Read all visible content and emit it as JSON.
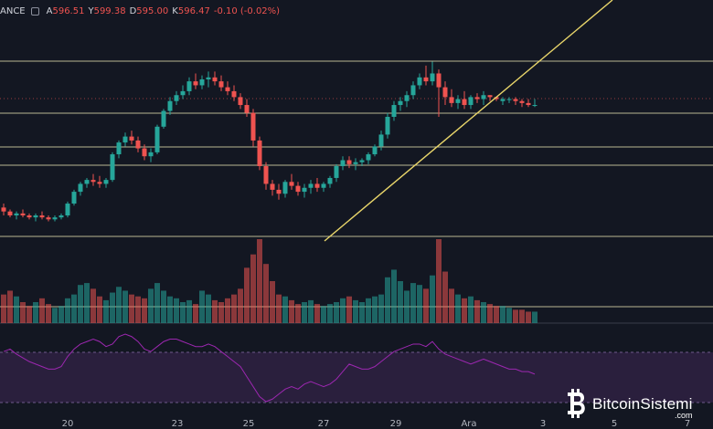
{
  "header": {
    "exchange": "ANCE",
    "open_label": "A",
    "open": "596.51",
    "high_label": "Y",
    "high": "599.38",
    "low_label": "D",
    "low": "595.00",
    "close_label": "K",
    "close": "596.47",
    "change": "-0.10 (-0.02%)",
    "settings_icon": "gear-icon"
  },
  "watermark": {
    "text": "BitcoinSistemi",
    "sub": ".com",
    "logo_icon": "bitcoin-logo-icon"
  },
  "colors": {
    "background": "#131722",
    "up": "#26a69a",
    "down": "#ef5350",
    "horizontal_line": "#d8d3a6",
    "trend_line": "#e8d56a",
    "rsi_line": "#9c27b0",
    "rsi_band": "#2a1f3d"
  },
  "chart_data": {
    "type": "candlestick",
    "x_tick_labels": [
      "20",
      "23",
      "25",
      "27",
      "29",
      "Ara",
      "3",
      "5",
      "7"
    ],
    "price_range": [
      515,
      640
    ],
    "candles": [
      [
        544,
        546,
        540,
        542
      ],
      [
        542,
        543,
        539,
        540
      ],
      [
        540,
        542,
        538,
        541
      ],
      [
        541,
        543,
        539,
        540
      ],
      [
        540,
        541,
        538,
        539
      ],
      [
        539,
        541,
        537,
        540
      ],
      [
        540,
        542,
        538,
        539
      ],
      [
        539,
        540,
        537,
        538
      ],
      [
        538,
        540,
        537,
        539
      ],
      [
        539,
        541,
        538,
        540
      ],
      [
        540,
        547,
        539,
        546
      ],
      [
        546,
        553,
        545,
        552
      ],
      [
        552,
        557,
        550,
        556
      ],
      [
        556,
        559,
        554,
        558
      ],
      [
        558,
        561,
        555,
        557
      ],
      [
        557,
        560,
        554,
        556
      ],
      [
        556,
        559,
        554,
        558
      ],
      [
        558,
        572,
        557,
        571
      ],
      [
        571,
        578,
        569,
        577
      ],
      [
        577,
        582,
        575,
        580
      ],
      [
        580,
        583,
        576,
        578
      ],
      [
        578,
        580,
        572,
        574
      ],
      [
        574,
        576,
        568,
        570
      ],
      [
        570,
        574,
        567,
        572
      ],
      [
        572,
        586,
        571,
        585
      ],
      [
        585,
        594,
        584,
        593
      ],
      [
        593,
        600,
        591,
        598
      ],
      [
        598,
        603,
        596,
        601
      ],
      [
        601,
        606,
        599,
        603
      ],
      [
        603,
        610,
        601,
        608
      ],
      [
        608,
        612,
        604,
        606
      ],
      [
        606,
        611,
        604,
        609
      ],
      [
        609,
        613,
        605,
        610
      ],
      [
        610,
        613,
        606,
        608
      ],
      [
        608,
        611,
        603,
        605
      ],
      [
        605,
        608,
        601,
        603
      ],
      [
        603,
        606,
        598,
        600
      ],
      [
        600,
        602,
        594,
        596
      ],
      [
        596,
        599,
        590,
        592
      ],
      [
        592,
        594,
        575,
        578
      ],
      [
        578,
        580,
        563,
        565
      ],
      [
        565,
        567,
        553,
        556
      ],
      [
        556,
        558,
        550,
        553
      ],
      [
        553,
        556,
        548,
        551
      ],
      [
        551,
        558,
        549,
        557
      ],
      [
        557,
        561,
        553,
        555
      ],
      [
        555,
        557,
        550,
        552
      ],
      [
        552,
        556,
        549,
        554
      ],
      [
        554,
        558,
        551,
        556
      ],
      [
        556,
        559,
        552,
        554
      ],
      [
        554,
        557,
        552,
        556
      ],
      [
        556,
        560,
        554,
        559
      ],
      [
        559,
        566,
        557,
        565
      ],
      [
        565,
        570,
        563,
        568
      ],
      [
        568,
        570,
        564,
        566
      ],
      [
        566,
        569,
        563,
        567
      ],
      [
        567,
        569,
        565,
        568
      ],
      [
        568,
        572,
        566,
        571
      ],
      [
        571,
        576,
        570,
        575
      ],
      [
        575,
        583,
        573,
        581
      ],
      [
        581,
        592,
        579,
        590
      ],
      [
        590,
        598,
        588,
        596
      ],
      [
        596,
        600,
        593,
        598
      ],
      [
        598,
        603,
        595,
        601
      ],
      [
        601,
        608,
        599,
        606
      ],
      [
        606,
        612,
        604,
        610
      ],
      [
        610,
        616,
        606,
        608
      ],
      [
        608,
        618,
        606,
        612
      ],
      [
        612,
        614,
        590,
        605
      ],
      [
        605,
        608,
        596,
        600
      ],
      [
        600,
        604,
        595,
        597
      ],
      [
        597,
        601,
        594,
        599
      ],
      [
        599,
        603,
        594,
        596
      ],
      [
        596,
        601,
        594,
        600
      ],
      [
        600,
        602,
        597,
        599
      ],
      [
        599,
        603,
        596,
        601
      ],
      [
        601,
        601,
        598,
        600
      ],
      [
        600,
        600,
        598,
        599
      ],
      [
        598,
        600,
        596,
        599
      ],
      [
        599,
        600,
        597,
        599
      ],
      [
        599,
        600,
        596,
        598
      ],
      [
        598,
        599,
        595,
        597
      ],
      [
        597,
        599,
        595,
        596
      ],
      [
        596,
        599,
        595,
        596
      ]
    ],
    "volume": [
      30,
      34,
      28,
      22,
      18,
      22,
      26,
      20,
      16,
      18,
      26,
      30,
      40,
      42,
      36,
      28,
      24,
      32,
      38,
      34,
      30,
      28,
      26,
      36,
      42,
      34,
      28,
      26,
      22,
      24,
      20,
      34,
      30,
      24,
      22,
      26,
      30,
      36,
      58,
      72,
      88,
      62,
      44,
      30,
      28,
      24,
      20,
      22,
      24,
      20,
      18,
      20,
      22,
      26,
      28,
      24,
      22,
      26,
      28,
      30,
      48,
      56,
      44,
      34,
      42,
      40,
      36,
      50,
      88,
      54,
      36,
      30,
      26,
      28,
      24,
      22,
      20,
      18,
      18,
      16,
      14,
      14,
      12,
      12
    ],
    "rsi": [
      60,
      62,
      58,
      55,
      52,
      50,
      48,
      46,
      46,
      48,
      56,
      62,
      66,
      68,
      70,
      68,
      64,
      66,
      72,
      74,
      72,
      68,
      62,
      60,
      64,
      68,
      70,
      70,
      68,
      66,
      64,
      64,
      66,
      64,
      60,
      56,
      52,
      48,
      40,
      32,
      24,
      20,
      22,
      26,
      30,
      32,
      30,
      34,
      36,
      34,
      32,
      34,
      38,
      44,
      50,
      48,
      46,
      46,
      48,
      52,
      56,
      60,
      62,
      64,
      66,
      66,
      64,
      68,
      62,
      58,
      56,
      54,
      52,
      50,
      52,
      54,
      52,
      50,
      48,
      46,
      46,
      44,
      44,
      42
    ]
  }
}
